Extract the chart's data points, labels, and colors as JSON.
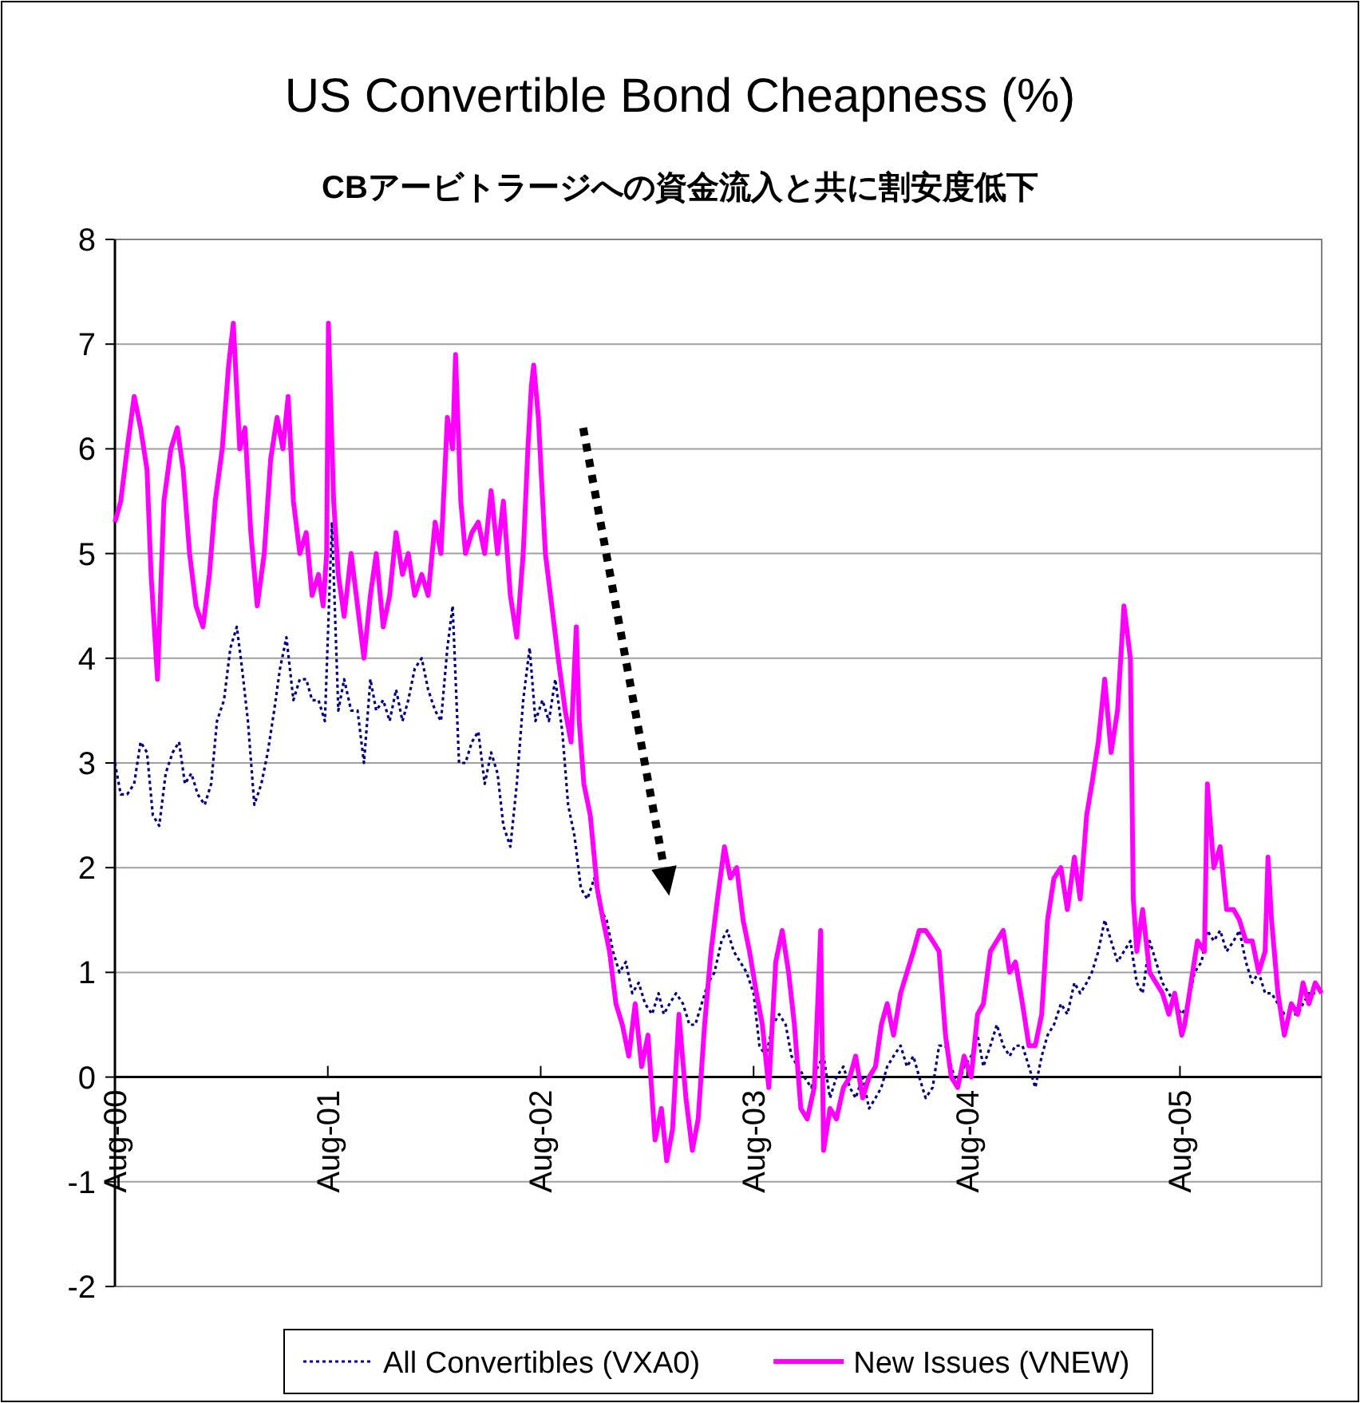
{
  "chart_data": {
    "type": "line",
    "title": "US Convertible Bond Cheapness (%)",
    "subtitle": "CBアービトラージへの資金流入と共に割安度低下",
    "xlim": [
      "2000-08-01",
      "2006-04-01"
    ],
    "ylim": [
      -2,
      8
    ],
    "yticks": [
      -2,
      -1,
      0,
      1,
      2,
      3,
      4,
      5,
      6,
      7,
      8
    ],
    "xticks": [
      {
        "value": "2000-08-01",
        "label": "Aug-00"
      },
      {
        "value": "2001-08-01",
        "label": "Aug-01"
      },
      {
        "value": "2002-08-01",
        "label": "Aug-02"
      },
      {
        "value": "2003-08-01",
        "label": "Aug-03"
      },
      {
        "value": "2004-08-01",
        "label": "Aug-04"
      },
      {
        "value": "2005-08-01",
        "label": "Aug-05"
      }
    ],
    "grid": "y",
    "legend": "bottom",
    "series": [
      {
        "name": "All Convertibles (VXA0)",
        "color": "#000080",
        "line_style": "dotted",
        "x": [
          "2000-08-01",
          "2000-08-11",
          "2000-08-22",
          "2000-09-03",
          "2000-09-14",
          "2000-09-25",
          "2000-10-05",
          "2000-10-16",
          "2000-10-27",
          "2000-11-08",
          "2000-11-19",
          "2000-11-29",
          "2000-12-10",
          "2000-12-21",
          "2001-01-02",
          "2001-01-13",
          "2001-01-23",
          "2001-02-04",
          "2001-02-15",
          "2001-02-26",
          "2001-03-07",
          "2001-03-17",
          "2001-03-28",
          "2001-04-09",
          "2001-04-20",
          "2001-05-01",
          "2001-05-11",
          "2001-05-22",
          "2001-06-03",
          "2001-06-14",
          "2001-06-25",
          "2001-07-05",
          "2001-07-16",
          "2001-07-27",
          "2001-08-08",
          "2001-08-19",
          "2001-08-29",
          "2001-09-10",
          "2001-09-21",
          "2001-10-02",
          "2001-10-13",
          "2001-10-23",
          "2001-11-04",
          "2001-11-15",
          "2001-11-26",
          "2001-12-07",
          "2001-12-17",
          "2001-12-28",
          "2002-01-09",
          "2002-01-20",
          "2002-02-01",
          "2002-02-11",
          "2002-02-22",
          "2002-03-03",
          "2002-03-14",
          "2002-03-25",
          "2002-04-05",
          "2002-04-16",
          "2002-04-27",
          "2002-05-08",
          "2002-05-19",
          "2002-05-29",
          "2002-06-10",
          "2002-06-21",
          "2002-07-02",
          "2002-07-13",
          "2002-07-23",
          "2002-08-04",
          "2002-08-15",
          "2002-08-26",
          "2002-09-07",
          "2002-09-17",
          "2002-09-28",
          "2002-10-09",
          "2002-10-20",
          "2002-11-01",
          "2002-11-11",
          "2002-11-22",
          "2002-12-03",
          "2002-12-14",
          "2002-12-25",
          "2003-01-05",
          "2003-01-16",
          "2003-01-27",
          "2003-02-08",
          "2003-02-19",
          "2003-02-28",
          "2003-03-10",
          "2003-03-21",
          "2003-04-02",
          "2003-04-13",
          "2003-04-23",
          "2003-05-04",
          "2003-05-15",
          "2003-05-26",
          "2003-06-07",
          "2003-06-17",
          "2003-06-28",
          "2003-07-09",
          "2003-07-20",
          "2003-08-01",
          "2003-08-11",
          "2003-08-22",
          "2003-09-03",
          "2003-09-14",
          "2003-09-25",
          "2003-10-05",
          "2003-10-16",
          "2003-10-27",
          "2003-11-08",
          "2003-11-19",
          "2003-11-29",
          "2003-12-10",
          "2003-12-21",
          "2004-01-02",
          "2004-01-13",
          "2004-01-23",
          "2004-02-04",
          "2004-02-15",
          "2004-02-26",
          "2004-03-07",
          "2004-03-17",
          "2004-03-28",
          "2004-04-09",
          "2004-04-20",
          "2004-05-01",
          "2004-05-11",
          "2004-05-22",
          "2004-06-03",
          "2004-06-14",
          "2004-06-25",
          "2004-07-05",
          "2004-07-16",
          "2004-07-27",
          "2004-08-08",
          "2004-08-19",
          "2004-08-29",
          "2004-09-10",
          "2004-09-21",
          "2004-10-02",
          "2004-10-13",
          "2004-10-23",
          "2004-11-04",
          "2004-11-15",
          "2004-11-26",
          "2004-12-07",
          "2004-12-17",
          "2004-12-28",
          "2005-01-09",
          "2005-01-20",
          "2005-02-01",
          "2005-02-11",
          "2005-02-22",
          "2005-03-03",
          "2005-03-14",
          "2005-03-25",
          "2005-04-05",
          "2005-04-16",
          "2005-04-27",
          "2005-05-08",
          "2005-05-19",
          "2005-05-29",
          "2005-06-10",
          "2005-06-21",
          "2005-07-02",
          "2005-07-13",
          "2005-07-23",
          "2005-08-04",
          "2005-08-15",
          "2005-08-26",
          "2005-09-07",
          "2005-09-17",
          "2005-09-28",
          "2005-10-09",
          "2005-10-20",
          "2005-11-01",
          "2005-11-11",
          "2005-11-22",
          "2005-12-03",
          "2005-12-14",
          "2005-12-25",
          "2006-01-05",
          "2006-01-16",
          "2006-01-27",
          "2006-02-08",
          "2006-02-19",
          "2006-02-28",
          "2006-03-10",
          "2006-03-21"
        ],
        "values": [
          3.0,
          2.7,
          2.7,
          2.8,
          3.2,
          3.1,
          2.5,
          2.4,
          2.9,
          3.1,
          3.2,
          2.8,
          2.9,
          2.7,
          2.6,
          2.8,
          3.4,
          3.6,
          4.1,
          4.3,
          3.9,
          3.4,
          2.6,
          2.8,
          3.1,
          3.5,
          3.9,
          4.2,
          3.6,
          3.8,
          3.8,
          3.6,
          3.6,
          3.4,
          5.3,
          3.5,
          3.8,
          3.5,
          3.5,
          3.0,
          3.8,
          3.5,
          3.6,
          3.4,
          3.7,
          3.4,
          3.6,
          3.9,
          4.0,
          3.7,
          3.5,
          3.4,
          4.1,
          4.5,
          3.0,
          3.0,
          3.2,
          3.3,
          2.8,
          3.1,
          2.9,
          2.4,
          2.2,
          2.8,
          3.6,
          4.1,
          3.4,
          3.6,
          3.4,
          3.8,
          3.3,
          2.6,
          2.3,
          1.8,
          1.7,
          1.9,
          1.6,
          1.5,
          1.2,
          1.0,
          1.1,
          0.8,
          0.9,
          0.7,
          0.6,
          0.8,
          0.6,
          0.7,
          0.8,
          0.7,
          0.5,
          0.5,
          0.7,
          0.9,
          1.0,
          1.3,
          1.4,
          1.2,
          1.1,
          1.0,
          0.8,
          0.3,
          0.2,
          0.5,
          0.6,
          0.5,
          0.2,
          0.1,
          0.0,
          -0.1,
          0.1,
          0.2,
          -0.2,
          0.0,
          0.1,
          -0.1,
          -0.2,
          0.0,
          -0.3,
          -0.2,
          -0.1,
          0.1,
          0.2,
          0.3,
          0.1,
          0.2,
          0.0,
          -0.2,
          -0.1,
          0.3,
          0.3,
          0.1,
          -0.1,
          0.1,
          0.2,
          0.4,
          0.1,
          0.3,
          0.5,
          0.3,
          0.2,
          0.3,
          0.3,
          0.1,
          -0.1,
          0.2,
          0.4,
          0.5,
          0.7,
          0.6,
          0.9,
          0.8,
          0.9,
          1.0,
          1.2,
          1.5,
          1.3,
          1.1,
          1.2,
          1.3,
          0.9,
          0.8,
          1.3,
          1.1,
          0.9,
          0.8,
          0.7,
          0.6,
          0.7,
          1.0,
          1.1,
          1.4,
          1.3,
          1.4,
          1.2,
          1.3,
          1.4,
          1.1,
          0.9,
          1.0,
          0.8,
          0.8,
          0.7,
          0.6,
          0.6,
          0.6,
          0.7,
          0.8,
          0.8
        ]
      },
      {
        "name": "New Issues (VNEW)",
        "color": "#ff00ff",
        "line_style": "solid",
        "x": [
          "2000-08-01",
          "2000-08-11",
          "2000-08-22",
          "2000-09-03",
          "2000-09-14",
          "2000-09-25",
          "2000-10-02",
          "2000-10-13",
          "2000-10-24",
          "2000-11-05",
          "2000-11-16",
          "2000-11-26",
          "2000-12-07",
          "2000-12-18",
          "2000-12-30",
          "2001-01-10",
          "2001-01-20",
          "2001-02-01",
          "2001-02-12",
          "2001-02-20",
          "2001-03-03",
          "2001-03-12",
          "2001-03-22",
          "2001-04-02",
          "2001-04-14",
          "2001-04-25",
          "2001-05-06",
          "2001-05-16",
          "2001-05-25",
          "2001-06-03",
          "2001-06-14",
          "2001-06-25",
          "2001-07-05",
          "2001-07-16",
          "2001-07-24",
          "2001-07-30",
          "2001-08-02",
          "2001-08-11",
          "2001-08-19",
          "2001-08-29",
          "2001-09-10",
          "2001-09-21",
          "2001-10-02",
          "2001-10-13",
          "2001-10-23",
          "2001-11-04",
          "2001-11-15",
          "2001-11-26",
          "2001-12-07",
          "2001-12-17",
          "2001-12-28",
          "2002-01-09",
          "2002-01-20",
          "2002-02-01",
          "2002-02-11",
          "2002-02-22",
          "2002-03-03",
          "2002-03-08",
          "2002-03-17",
          "2002-03-25",
          "2002-04-05",
          "2002-04-16",
          "2002-04-27",
          "2002-05-08",
          "2002-05-19",
          "2002-05-29",
          "2002-06-10",
          "2002-06-21",
          "2002-07-02",
          "2002-07-10",
          "2002-07-16",
          "2002-07-20",
          "2002-07-28",
          "2002-08-09",
          "2002-08-20",
          "2002-08-31",
          "2002-09-12",
          "2002-09-22",
          "2002-10-01",
          "2002-10-06",
          "2002-10-14",
          "2002-10-25",
          "2002-11-06",
          "2002-11-16",
          "2002-11-27",
          "2002-12-08",
          "2002-12-19",
          "2002-12-30",
          "2003-01-10",
          "2003-01-21",
          "2003-02-01",
          "2003-02-13",
          "2003-02-24",
          "2003-03-05",
          "2003-03-15",
          "2003-03-26",
          "2003-04-07",
          "2003-04-18",
          "2003-04-28",
          "2003-05-09",
          "2003-05-20",
          "2003-05-31",
          "2003-06-12",
          "2003-06-22",
          "2003-07-03",
          "2003-07-14",
          "2003-07-25",
          "2003-08-06",
          "2003-08-16",
          "2003-08-27",
          "2003-09-08",
          "2003-09-19",
          "2003-09-30",
          "2003-10-10",
          "2003-10-21",
          "2003-11-01",
          "2003-11-13",
          "2003-11-24",
          "2003-11-29",
          "2003-12-10",
          "2003-12-21",
          "2004-01-02",
          "2004-01-13",
          "2004-01-23",
          "2004-02-04",
          "2004-02-15",
          "2004-02-26",
          "2004-03-07",
          "2004-03-17",
          "2004-03-28",
          "2004-04-09",
          "2004-04-20",
          "2004-05-01",
          "2004-05-11",
          "2004-05-22",
          "2004-06-03",
          "2004-06-14",
          "2004-06-25",
          "2004-07-05",
          "2004-07-16",
          "2004-07-27",
          "2004-08-08",
          "2004-08-19",
          "2004-08-29",
          "2004-09-10",
          "2004-09-21",
          "2004-10-02",
          "2004-10-13",
          "2004-10-23",
          "2004-11-04",
          "2004-11-15",
          "2004-11-26",
          "2004-12-07",
          "2004-12-17",
          "2004-12-28",
          "2005-01-09",
          "2005-01-20",
          "2005-02-01",
          "2005-02-11",
          "2005-02-22",
          "2005-03-03",
          "2005-03-14",
          "2005-03-25",
          "2005-04-05",
          "2005-04-16",
          "2005-04-27",
          "2005-05-08",
          "2005-05-13",
          "2005-05-19",
          "2005-05-29",
          "2005-06-10",
          "2005-06-21",
          "2005-07-02",
          "2005-07-13",
          "2005-07-23",
          "2005-08-04",
          "2005-08-09",
          "2005-08-20",
          "2005-08-31",
          "2005-09-12",
          "2005-09-17",
          "2005-09-28",
          "2005-10-09",
          "2005-10-20",
          "2005-11-01",
          "2005-11-11",
          "2005-11-22",
          "2005-12-03",
          "2005-12-14",
          "2005-12-25",
          "2005-12-30",
          "2006-01-05",
          "2006-01-16",
          "2006-01-27",
          "2006-02-08",
          "2006-02-19",
          "2006-02-28",
          "2006-03-10",
          "2006-03-21",
          "2006-04-01"
        ],
        "values": [
          5.3,
          5.5,
          6.0,
          6.5,
          6.2,
          5.8,
          4.8,
          3.8,
          5.5,
          6.0,
          6.2,
          5.8,
          5.0,
          4.5,
          4.3,
          4.8,
          5.5,
          6.0,
          6.8,
          7.2,
          6.0,
          6.2,
          5.2,
          4.5,
          5.0,
          5.9,
          6.3,
          6.0,
          6.5,
          5.5,
          5.0,
          5.2,
          4.6,
          4.8,
          4.5,
          5.0,
          7.2,
          5.5,
          4.8,
          4.4,
          5.0,
          4.5,
          4.0,
          4.6,
          5.0,
          4.3,
          4.6,
          5.2,
          4.8,
          5.0,
          4.6,
          4.8,
          4.6,
          5.3,
          5.0,
          6.3,
          6.0,
          6.9,
          5.5,
          5.0,
          5.2,
          5.3,
          5.0,
          5.6,
          5.0,
          5.5,
          4.6,
          4.2,
          5.0,
          6.0,
          6.6,
          6.8,
          6.3,
          5.0,
          4.5,
          4.0,
          3.5,
          3.2,
          4.3,
          3.4,
          2.8,
          2.5,
          1.8,
          1.5,
          1.2,
          0.7,
          0.5,
          0.2,
          0.7,
          0.1,
          0.4,
          -0.6,
          -0.3,
          -0.8,
          -0.5,
          0.6,
          -0.2,
          -0.7,
          -0.4,
          0.5,
          1.2,
          1.7,
          2.2,
          1.9,
          2.0,
          1.5,
          1.2,
          0.8,
          0.5,
          -0.1,
          1.1,
          1.4,
          1.0,
          0.5,
          -0.3,
          -0.4,
          -0.1,
          1.4,
          -0.7,
          -0.3,
          -0.4,
          -0.1,
          0.0,
          0.2,
          -0.2,
          0.0,
          0.1,
          0.5,
          0.7,
          0.4,
          0.8,
          1.0,
          1.2,
          1.4,
          1.4,
          1.3,
          1.2,
          0.4,
          0.0,
          -0.1,
          0.2,
          0.0,
          0.6,
          0.7,
          1.2,
          1.3,
          1.4,
          1.0,
          1.1,
          0.7,
          0.3,
          0.3,
          0.6,
          1.5,
          1.9,
          2.0,
          1.6,
          2.1,
          1.7,
          2.5,
          2.8,
          3.2,
          3.8,
          3.1,
          3.5,
          4.5,
          4.0,
          1.7,
          1.2,
          1.6,
          1.0,
          0.9,
          0.8,
          0.6,
          0.8,
          0.4,
          0.5,
          0.9,
          1.3,
          1.2,
          2.8,
          2.0,
          2.2,
          1.6,
          1.6,
          1.5,
          1.3,
          1.3,
          1.0,
          1.2,
          2.1,
          1.5,
          0.8,
          0.4,
          0.7,
          0.6,
          0.9,
          0.7,
          0.9,
          0.8
        ]
      }
    ]
  }
}
